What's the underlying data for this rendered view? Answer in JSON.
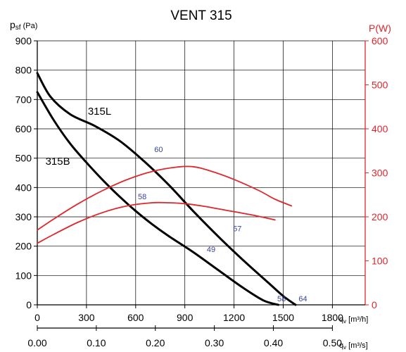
{
  "chart_data": {
    "type": "line",
    "title": "VENT 315",
    "left_axis": {
      "label_main": "p",
      "label_sub": "sf",
      "label_unit": " (Pa)",
      "ylim": [
        0,
        900
      ],
      "ticks": [
        0,
        100,
        200,
        300,
        400,
        500,
        600,
        700,
        800,
        900
      ]
    },
    "right_axis": {
      "label": "P(W)",
      "ylim": [
        0,
        600
      ],
      "ticks": [
        0,
        100,
        200,
        300,
        400,
        500,
        600
      ],
      "color": "#e0262b"
    },
    "x_axis": {
      "label_main": "q",
      "label_sub": "v",
      "label_unit": " [m³/h]",
      "xlim": [
        0,
        2000
      ],
      "ticks": [
        0,
        300,
        600,
        900,
        1200,
        1500,
        1800
      ],
      "grid_lines": [
        0,
        300,
        600,
        900,
        1200,
        1500,
        1800
      ]
    },
    "x_axis_secondary": {
      "label_main": "q",
      "label_sub": "v",
      "label_unit": " [m³/s]",
      "ticks": [
        0.0,
        0.1,
        0.2,
        0.3,
        0.4,
        0.5
      ],
      "tick_labels": [
        "0.00",
        "0.10",
        "0.20",
        "0.30",
        "0.40",
        "0.50"
      ]
    },
    "grid": true,
    "series": [
      {
        "name": "315L",
        "axis": "left",
        "color": "#000000",
        "x": [
          0,
          80,
          200,
          350,
          500,
          650,
          800,
          950,
          1100,
          1250,
          1400,
          1500,
          1575
        ],
        "y": [
          790,
          710,
          650,
          610,
          560,
          490,
          410,
          320,
          235,
          155,
          80,
          30,
          0
        ]
      },
      {
        "name": "315B",
        "axis": "left",
        "color": "#000000",
        "x": [
          0,
          100,
          200,
          300,
          400,
          500,
          600,
          700,
          800,
          950,
          1100,
          1250,
          1380,
          1470
        ],
        "y": [
          725,
          630,
          550,
          485,
          425,
          370,
          320,
          275,
          235,
          180,
          120,
          60,
          15,
          0
        ]
      },
      {
        "name": "",
        "axis": "right",
        "color": "#e0262b",
        "x": [
          0,
          100,
          250,
          400,
          550,
          700,
          850,
          950,
          1050,
          1200,
          1350,
          1450,
          1550
        ],
        "y": [
          170,
          195,
          230,
          260,
          285,
          303,
          313,
          314,
          305,
          285,
          260,
          240,
          225
        ]
      },
      {
        "name": "",
        "axis": "right",
        "color": "#e0262b",
        "x": [
          0,
          100,
          250,
          400,
          550,
          700,
          800,
          900,
          1000,
          1150,
          1300,
          1450
        ],
        "y": [
          140,
          160,
          188,
          210,
          225,
          232,
          232,
          230,
          225,
          215,
          205,
          193
        ]
      }
    ],
    "annotations": [
      {
        "text": "315L",
        "x": 380,
        "y": 660,
        "color": "#000000",
        "kind": "curve_label"
      },
      {
        "text": "315B",
        "x": 125,
        "y": 490,
        "color": "#000000",
        "kind": "curve_label"
      },
      {
        "text": "60",
        "x": 740,
        "y": 530,
        "color": "#3b3fa0",
        "kind": "value_label"
      },
      {
        "text": "58",
        "x": 640,
        "y": 370,
        "color": "#3b3fa0",
        "kind": "value_label"
      },
      {
        "text": "57",
        "x": 1220,
        "y": 260,
        "color": "#3b3fa0",
        "kind": "value_label"
      },
      {
        "text": "49",
        "x": 1060,
        "y": 190,
        "color": "#3b3fa0",
        "kind": "value_label"
      },
      {
        "text": "58",
        "x": 1490,
        "y": 22,
        "color": "#3b3fa0",
        "kind": "value_label"
      },
      {
        "text": "64",
        "x": 1620,
        "y": 22,
        "color": "#3b3fa0",
        "kind": "value_label"
      }
    ]
  }
}
